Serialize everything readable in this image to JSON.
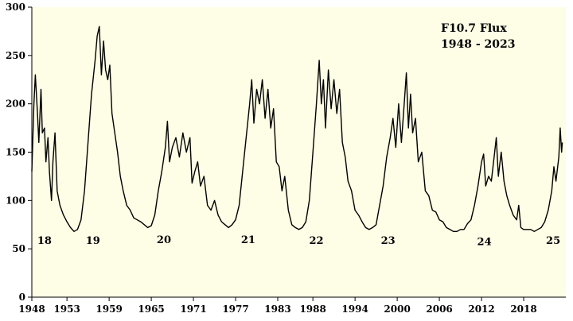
{
  "chart_data": {
    "type": "line",
    "title": "F10.7 Flux",
    "subtitle": "1948 - 2023",
    "xlabel": "",
    "ylabel": "",
    "xlim": [
      1948,
      2024
    ],
    "ylim": [
      0,
      300
    ],
    "grid": false,
    "legend": "none",
    "colors": {
      "plot_bg": "#fefde6",
      "line": "#000000"
    },
    "y_ticks": [
      0,
      50,
      100,
      150,
      200,
      250,
      300
    ],
    "x_ticks": [
      1948,
      1953,
      1959,
      1965,
      1971,
      1977,
      1983,
      1988,
      1994,
      2000,
      2006,
      2012,
      2018
    ],
    "x_tick_labels": [
      "1948",
      "1953",
      "1959",
      "1965",
      "1971",
      "1977",
      "1983",
      "1988",
      "1994",
      "2000",
      "2006",
      "2012",
      "2018"
    ],
    "cycle_labels": [
      {
        "text": "18",
        "x": 1949.8,
        "y": 55
      },
      {
        "text": "19",
        "x": 1956.7,
        "y": 55
      },
      {
        "text": "20",
        "x": 1966.8,
        "y": 56
      },
      {
        "text": "21",
        "x": 1978.8,
        "y": 56
      },
      {
        "text": "22",
        "x": 1988.5,
        "y": 55
      },
      {
        "text": "23",
        "x": 1998.7,
        "y": 55
      },
      {
        "text": "24",
        "x": 2012.4,
        "y": 54
      },
      {
        "text": "25",
        "x": 2022.2,
        "y": 55
      }
    ],
    "series": [
      {
        "values": [
          [
            1948.0,
            130
          ],
          [
            1948.3,
            200
          ],
          [
            1948.5,
            230
          ],
          [
            1948.8,
            190
          ],
          [
            1949.0,
            160
          ],
          [
            1949.3,
            215
          ],
          [
            1949.5,
            170
          ],
          [
            1949.8,
            175
          ],
          [
            1950.0,
            140
          ],
          [
            1950.3,
            165
          ],
          [
            1950.5,
            130
          ],
          [
            1950.8,
            100
          ],
          [
            1951.0,
            140
          ],
          [
            1951.3,
            170
          ],
          [
            1951.6,
            110
          ],
          [
            1952.0,
            95
          ],
          [
            1952.5,
            85
          ],
          [
            1953.0,
            78
          ],
          [
            1953.5,
            72
          ],
          [
            1954.0,
            68
          ],
          [
            1954.5,
            70
          ],
          [
            1955.0,
            80
          ],
          [
            1955.5,
            110
          ],
          [
            1956.0,
            160
          ],
          [
            1956.5,
            210
          ],
          [
            1957.0,
            245
          ],
          [
            1957.3,
            270
          ],
          [
            1957.6,
            280
          ],
          [
            1957.9,
            230
          ],
          [
            1958.2,
            265
          ],
          [
            1958.5,
            235
          ],
          [
            1958.8,
            225
          ],
          [
            1959.1,
            240
          ],
          [
            1959.4,
            190
          ],
          [
            1959.8,
            170
          ],
          [
            1960.2,
            150
          ],
          [
            1960.6,
            125
          ],
          [
            1961.0,
            110
          ],
          [
            1961.5,
            95
          ],
          [
            1962.0,
            90
          ],
          [
            1962.5,
            82
          ],
          [
            1963.0,
            80
          ],
          [
            1963.5,
            78
          ],
          [
            1964.0,
            75
          ],
          [
            1964.5,
            72
          ],
          [
            1965.0,
            74
          ],
          [
            1965.5,
            85
          ],
          [
            1966.0,
            110
          ],
          [
            1966.5,
            130
          ],
          [
            1967.0,
            155
          ],
          [
            1967.3,
            182
          ],
          [
            1967.6,
            140
          ],
          [
            1968.0,
            155
          ],
          [
            1968.5,
            165
          ],
          [
            1969.0,
            145
          ],
          [
            1969.5,
            170
          ],
          [
            1970.0,
            150
          ],
          [
            1970.5,
            165
          ],
          [
            1970.8,
            118
          ],
          [
            1971.2,
            130
          ],
          [
            1971.6,
            140
          ],
          [
            1972.0,
            115
          ],
          [
            1972.5,
            125
          ],
          [
            1973.0,
            95
          ],
          [
            1973.5,
            90
          ],
          [
            1974.0,
            100
          ],
          [
            1974.5,
            85
          ],
          [
            1975.0,
            78
          ],
          [
            1975.5,
            75
          ],
          [
            1976.0,
            72
          ],
          [
            1976.5,
            75
          ],
          [
            1977.0,
            80
          ],
          [
            1977.5,
            95
          ],
          [
            1978.0,
            130
          ],
          [
            1978.5,
            165
          ],
          [
            1979.0,
            200
          ],
          [
            1979.3,
            225
          ],
          [
            1979.6,
            180
          ],
          [
            1980.0,
            215
          ],
          [
            1980.4,
            200
          ],
          [
            1980.8,
            225
          ],
          [
            1981.2,
            185
          ],
          [
            1981.6,
            215
          ],
          [
            1982.0,
            175
          ],
          [
            1982.4,
            195
          ],
          [
            1982.8,
            140
          ],
          [
            1983.2,
            135
          ],
          [
            1983.6,
            110
          ],
          [
            1984.0,
            125
          ],
          [
            1984.5,
            90
          ],
          [
            1985.0,
            75
          ],
          [
            1985.5,
            72
          ],
          [
            1986.0,
            70
          ],
          [
            1986.5,
            72
          ],
          [
            1987.0,
            78
          ],
          [
            1987.5,
            100
          ],
          [
            1988.0,
            150
          ],
          [
            1988.5,
            200
          ],
          [
            1988.9,
            245
          ],
          [
            1989.2,
            200
          ],
          [
            1989.5,
            225
          ],
          [
            1989.8,
            175
          ],
          [
            1990.2,
            235
          ],
          [
            1990.6,
            195
          ],
          [
            1991.0,
            225
          ],
          [
            1991.4,
            190
          ],
          [
            1991.8,
            215
          ],
          [
            1992.2,
            160
          ],
          [
            1992.6,
            145
          ],
          [
            1993.0,
            120
          ],
          [
            1993.5,
            110
          ],
          [
            1994.0,
            90
          ],
          [
            1994.5,
            85
          ],
          [
            1995.0,
            78
          ],
          [
            1995.5,
            72
          ],
          [
            1996.0,
            70
          ],
          [
            1996.5,
            72
          ],
          [
            1997.0,
            75
          ],
          [
            1997.5,
            95
          ],
          [
            1998.0,
            115
          ],
          [
            1998.5,
            145
          ],
          [
            1999.0,
            165
          ],
          [
            1999.4,
            185
          ],
          [
            1999.8,
            155
          ],
          [
            2000.2,
            200
          ],
          [
            2000.6,
            160
          ],
          [
            2001.0,
            200
          ],
          [
            2001.3,
            232
          ],
          [
            2001.6,
            175
          ],
          [
            2001.9,
            210
          ],
          [
            2002.2,
            170
          ],
          [
            2002.6,
            185
          ],
          [
            2003.0,
            140
          ],
          [
            2003.5,
            150
          ],
          [
            2004.0,
            110
          ],
          [
            2004.5,
            105
          ],
          [
            2005.0,
            90
          ],
          [
            2005.5,
            88
          ],
          [
            2006.0,
            80
          ],
          [
            2006.5,
            78
          ],
          [
            2007.0,
            72
          ],
          [
            2007.5,
            70
          ],
          [
            2008.0,
            68
          ],
          [
            2008.5,
            68
          ],
          [
            2009.0,
            70
          ],
          [
            2009.5,
            70
          ],
          [
            2010.0,
            76
          ],
          [
            2010.5,
            80
          ],
          [
            2011.0,
            95
          ],
          [
            2011.5,
            115
          ],
          [
            2012.0,
            140
          ],
          [
            2012.3,
            148
          ],
          [
            2012.6,
            115
          ],
          [
            2013.0,
            125
          ],
          [
            2013.4,
            120
          ],
          [
            2013.8,
            145
          ],
          [
            2014.1,
            165
          ],
          [
            2014.4,
            125
          ],
          [
            2014.8,
            150
          ],
          [
            2015.2,
            120
          ],
          [
            2015.6,
            105
          ],
          [
            2016.0,
            95
          ],
          [
            2016.5,
            85
          ],
          [
            2017.0,
            80
          ],
          [
            2017.3,
            95
          ],
          [
            2017.6,
            72
          ],
          [
            2018.0,
            70
          ],
          [
            2018.5,
            70
          ],
          [
            2019.0,
            70
          ],
          [
            2019.5,
            68
          ],
          [
            2020.0,
            70
          ],
          [
            2020.5,
            72
          ],
          [
            2021.0,
            78
          ],
          [
            2021.5,
            90
          ],
          [
            2022.0,
            110
          ],
          [
            2022.3,
            135
          ],
          [
            2022.6,
            120
          ],
          [
            2023.0,
            145
          ],
          [
            2023.2,
            175
          ],
          [
            2023.4,
            150
          ],
          [
            2023.5,
            160
          ]
        ]
      }
    ]
  }
}
